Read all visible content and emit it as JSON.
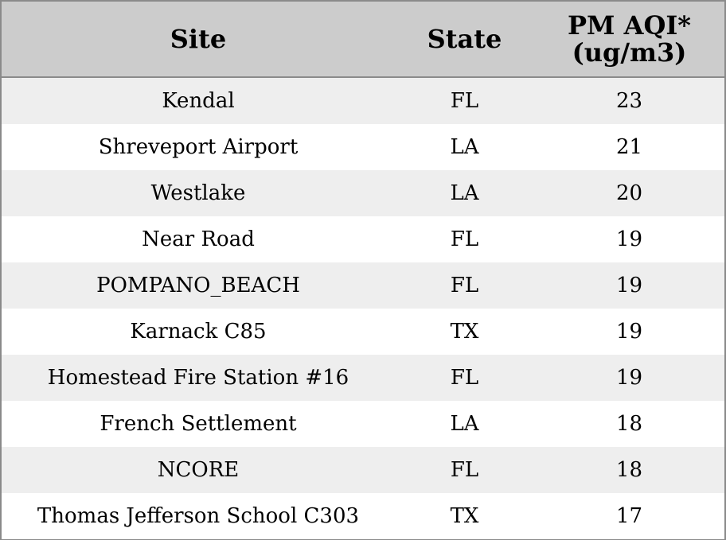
{
  "table": {
    "headers": {
      "site": "Site",
      "state": "State",
      "pm_line1": "PM AQI*",
      "pm_line2": "(ug/m3)"
    },
    "rows": [
      {
        "site": "Kendal",
        "state": "FL",
        "pm": "23"
      },
      {
        "site": "Shreveport Airport",
        "state": "LA",
        "pm": "21"
      },
      {
        "site": "Westlake",
        "state": "LA",
        "pm": "20"
      },
      {
        "site": "Near Road",
        "state": "FL",
        "pm": "19"
      },
      {
        "site": "POMPANO_BEACH",
        "state": "FL",
        "pm": "19"
      },
      {
        "site": "Karnack C85",
        "state": "TX",
        "pm": "19"
      },
      {
        "site": "Homestead Fire Station #16",
        "state": "FL",
        "pm": "19"
      },
      {
        "site": "French Settlement",
        "state": "LA",
        "pm": "18"
      },
      {
        "site": "NCORE",
        "state": "FL",
        "pm": "18"
      },
      {
        "site": "Thomas Jefferson School C303",
        "state": "TX",
        "pm": "17"
      }
    ]
  },
  "colors": {
    "header_bg": "#cccccc",
    "row_alt_bg": "#eeeeee",
    "row_bg": "#ffffff",
    "border": "#8a8a8a"
  }
}
